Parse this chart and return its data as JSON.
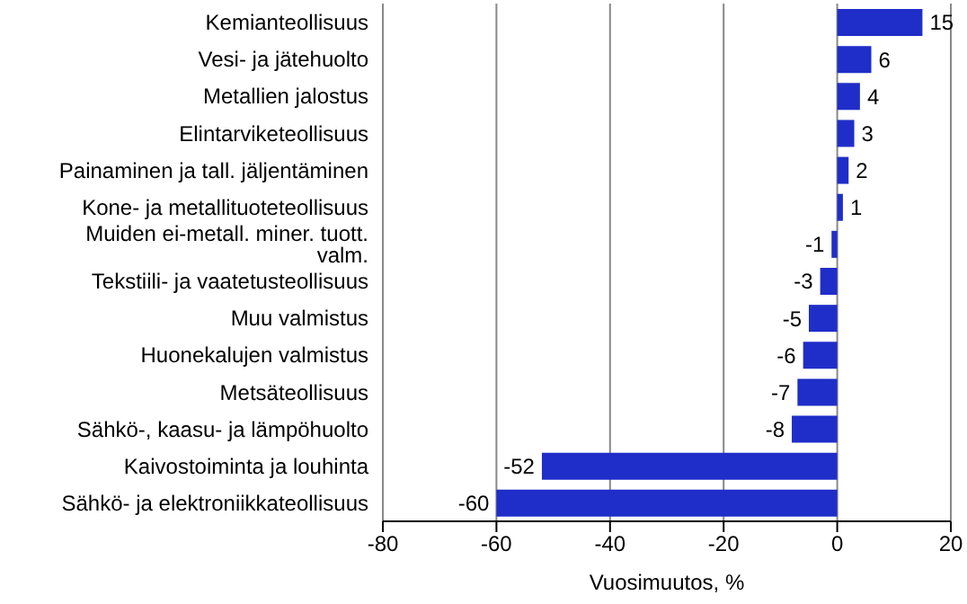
{
  "chart_data": {
    "type": "bar",
    "orientation": "horizontal",
    "xlabel": "Vuosimuutos, %",
    "categories": [
      "Kemianteollisuus",
      "Vesi- ja jätehuolto",
      "Metallien jalostus",
      "Elintarviketeollisuus",
      "Painaminen ja tall. jäljentäminen",
      "Kone- ja metallituoteteollisuus",
      "Muiden ei-metall. miner. tuott. valm.",
      "Tekstiili- ja vaatetusteollisuus",
      "Muu valmistus",
      "Huonekalujen valmistus",
      "Metsäteollisuus",
      "Sähkö-, kaasu- ja lämpöhuolto",
      "Kaivostoiminta ja louhinta",
      "Sähkö- ja elektroniikkateollisuus"
    ],
    "values": [
      15,
      6,
      4,
      3,
      2,
      1,
      -1,
      -3,
      -5,
      -6,
      -7,
      -8,
      -52,
      -60
    ],
    "color": "#1f2ec8",
    "xlim": [
      -80,
      20
    ],
    "xticks": [
      -80,
      -60,
      -40,
      -20,
      0,
      20
    ],
    "grid": "x",
    "data_labels": true
  }
}
